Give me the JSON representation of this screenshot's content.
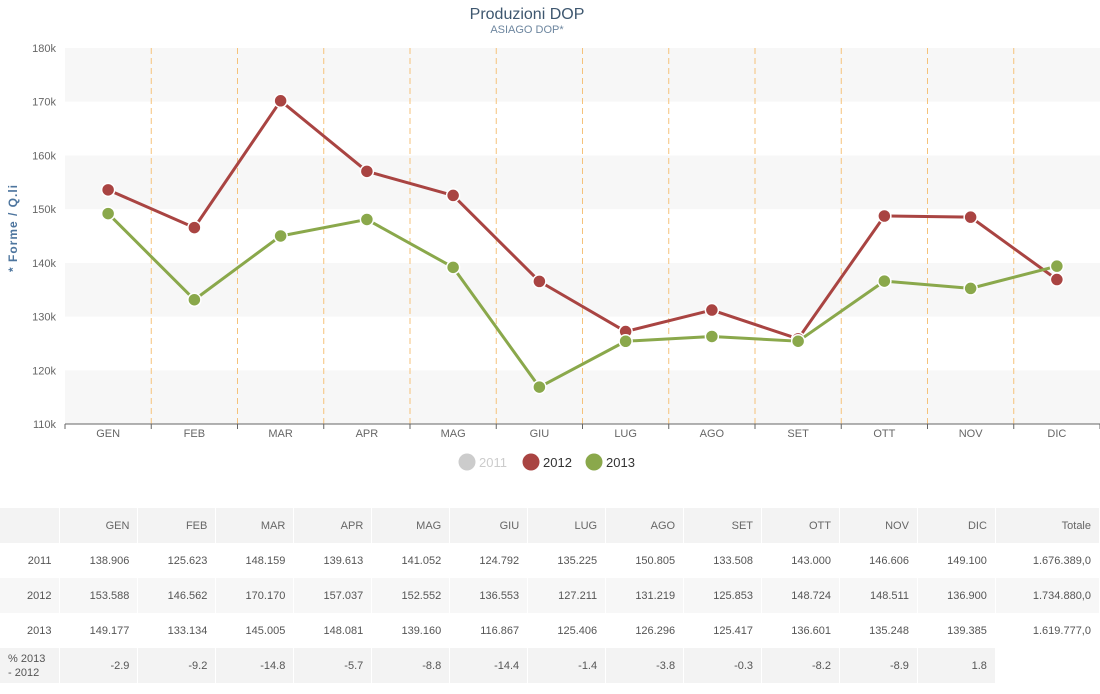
{
  "chart_data": {
    "type": "line",
    "title": "Produzioni DOP",
    "subtitle": "ASIAGO DOP*",
    "ylabel": "* Forme / Q.li",
    "xlabel": "",
    "categories": [
      "GEN",
      "FEB",
      "MAR",
      "APR",
      "MAG",
      "GIU",
      "LUG",
      "AGO",
      "SET",
      "OTT",
      "NOV",
      "DIC"
    ],
    "ylim": [
      110000,
      180000
    ],
    "yticks": [
      110000,
      120000,
      130000,
      140000,
      150000,
      160000,
      170000,
      180000
    ],
    "ytick_labels": [
      "110k",
      "120k",
      "130k",
      "140k",
      "150k",
      "160k",
      "170k",
      "180k"
    ],
    "grid": "alternating horizontal bands, dashed vertical category separators",
    "legend_position": "bottom-center",
    "series": [
      {
        "name": "2011",
        "visible": false,
        "color": "#cccccc",
        "values": [
          138906,
          125623,
          148159,
          139613,
          141052,
          124792,
          135225,
          150805,
          133508,
          143000,
          146606,
          149100
        ]
      },
      {
        "name": "2012",
        "visible": true,
        "color": "#a94442",
        "values": [
          153588,
          146562,
          170170,
          157037,
          152552,
          136553,
          127211,
          131219,
          125853,
          148724,
          148511,
          136900
        ]
      },
      {
        "name": "2013",
        "visible": true,
        "color": "#8aa84b",
        "values": [
          149177,
          133134,
          145005,
          148081,
          139160,
          116867,
          125406,
          126296,
          125417,
          136601,
          135248,
          139385
        ]
      }
    ]
  },
  "table": {
    "headers": [
      "",
      "GEN",
      "FEB",
      "MAR",
      "APR",
      "MAG",
      "GIU",
      "LUG",
      "AGO",
      "SET",
      "OTT",
      "NOV",
      "DIC",
      "Totale"
    ],
    "rows": [
      {
        "label": "2011",
        "cells": [
          "138.906",
          "125.623",
          "148.159",
          "139.613",
          "141.052",
          "124.792",
          "135.225",
          "150.805",
          "133.508",
          "143.000",
          "146.606",
          "149.100"
        ],
        "total": "1.676.389,0"
      },
      {
        "label": "2012",
        "cells": [
          "153.588",
          "146.562",
          "170.170",
          "157.037",
          "152.552",
          "136.553",
          "127.211",
          "131.219",
          "125.853",
          "148.724",
          "148.511",
          "136.900"
        ],
        "total": "1.734.880,0"
      },
      {
        "label": "2013",
        "cells": [
          "149.177",
          "133.134",
          "145.005",
          "148.081",
          "139.160",
          "116.867",
          "125.406",
          "126.296",
          "125.417",
          "136.601",
          "135.248",
          "139.385"
        ],
        "total": "1.619.777,0"
      },
      {
        "label": "% 2013 - 2012",
        "cells": [
          "-2.9",
          "-9.2",
          "-14.8",
          "-5.7",
          "-8.8",
          "-14.4",
          "-1.4",
          "-3.8",
          "-0.3",
          "-8.2",
          "-8.9",
          "1.8"
        ],
        "total": ""
      }
    ]
  }
}
